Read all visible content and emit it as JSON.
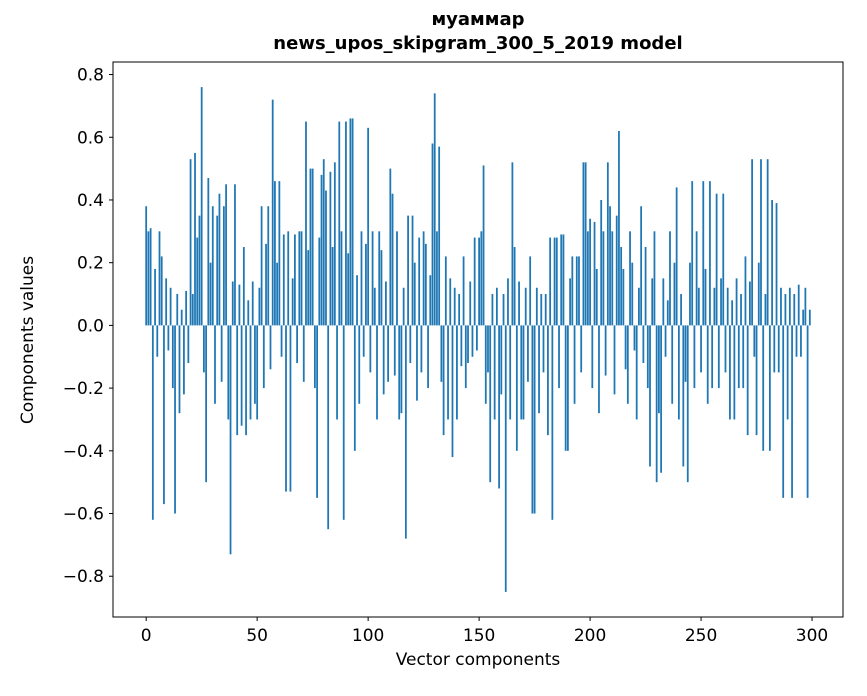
{
  "chart_data": {
    "type": "bar",
    "title": "муаммар",
    "subtitle": "news_upos_skipgram_300_5_2019 model",
    "xlabel": "Vector components",
    "ylabel": "Components values",
    "x_ticks": [
      0,
      50,
      100,
      150,
      200,
      250,
      300
    ],
    "x_tick_labels": [
      "0",
      "50",
      "100",
      "150",
      "200",
      "250",
      "300"
    ],
    "y_ticks": [
      0.8,
      0.6,
      0.4,
      0.2,
      0.0,
      -0.2,
      -0.4,
      -0.6,
      -0.8
    ],
    "y_tick_labels": [
      "0.8",
      "0.6",
      "0.4",
      "0.2",
      "0.0",
      "−0.2",
      "−0.4",
      "−0.6",
      "−0.8"
    ],
    "xlim": [
      -14.95,
      313.95
    ],
    "ylim": [
      -0.93,
      0.84
    ],
    "bar_color": "#1f77b4",
    "axis_color": "#000000",
    "n_components": 300,
    "legend": "none",
    "grid": false,
    "values": [
      0.38,
      0.3,
      0.31,
      -0.62,
      0.18,
      -0.1,
      0.3,
      0.22,
      -0.57,
      0.15,
      -0.08,
      0.12,
      -0.2,
      -0.6,
      0.1,
      -0.28,
      0.05,
      -0.22,
      0.11,
      -0.12,
      0.53,
      0.1,
      0.55,
      0.28,
      0.35,
      0.76,
      -0.15,
      -0.5,
      0.47,
      0.2,
      0.38,
      -0.25,
      0.35,
      0.42,
      -0.18,
      0.38,
      0.45,
      -0.3,
      -0.73,
      0.14,
      0.45,
      -0.35,
      0.13,
      -0.32,
      0.25,
      -0.35,
      0.08,
      -0.3,
      0.14,
      -0.25,
      -0.3,
      0.12,
      0.38,
      -0.2,
      0.26,
      0.38,
      -0.14,
      0.72,
      0.46,
      0.2,
      0.46,
      -0.1,
      0.29,
      -0.53,
      0.3,
      -0.53,
      0.15,
      0.29,
      -0.12,
      0.3,
      0.3,
      -0.18,
      0.65,
      0.24,
      0.5,
      0.5,
      -0.2,
      -0.55,
      0.28,
      0.48,
      0.53,
      0.43,
      -0.65,
      0.49,
      0.25,
      0.52,
      -0.3,
      0.65,
      0.3,
      -0.62,
      0.65,
      0.23,
      0.66,
      0.66,
      -0.4,
      0.16,
      -0.25,
      0.3,
      -0.1,
      0.26,
      0.63,
      -0.15,
      0.3,
      0.12,
      -0.3,
      0.3,
      0.24,
      -0.22,
      0.14,
      -0.18,
      0.5,
      0.42,
      -0.16,
      0.3,
      -0.3,
      -0.28,
      0.12,
      -0.68,
      0.35,
      -0.12,
      0.35,
      0.2,
      -0.24,
      0.28,
      -0.15,
      0.3,
      0.26,
      -0.2,
      0.16,
      0.58,
      0.74,
      0.3,
      0.57,
      -0.18,
      -0.35,
      0.22,
      -0.3,
      0.15,
      -0.42,
      0.12,
      -0.3,
      0.1,
      -0.13,
      0.22,
      -0.2,
      -0.12,
      0.14,
      -0.1,
      0.28,
      -0.08,
      0.28,
      0.3,
      0.51,
      -0.25,
      -0.15,
      -0.5,
      0.1,
      -0.3,
      0.12,
      -0.52,
      -0.22,
      0.1,
      -0.85,
      0.15,
      -0.3,
      0.52,
      0.25,
      -0.4,
      0.14,
      -0.3,
      -0.3,
      0.12,
      -0.18,
      0.22,
      -0.6,
      -0.6,
      0.12,
      -0.28,
      0.1,
      -0.15,
      0.1,
      -0.35,
      0.28,
      -0.62,
      0.28,
      0.28,
      -0.2,
      0.29,
      0.29,
      -0.4,
      -0.4,
      0.15,
      0.22,
      -0.25,
      0.22,
      0.22,
      -0.15,
      0.52,
      0.52,
      0.3,
      0.34,
      -0.2,
      0.33,
      0.18,
      -0.28,
      0.4,
      0.3,
      -0.16,
      0.52,
      0.38,
      0.3,
      -0.22,
      0.35,
      0.62,
      0.25,
      0.18,
      -0.14,
      -0.25,
      0.3,
      0.2,
      -0.08,
      -0.3,
      0.12,
      0.38,
      -0.12,
      0.25,
      -0.2,
      -0.45,
      0.15,
      0.3,
      -0.5,
      -0.28,
      -0.47,
      0.15,
      -0.1,
      0.08,
      0.3,
      -0.25,
      0.2,
      0.44,
      -0.3,
      0.1,
      -0.45,
      -0.18,
      -0.5,
      0.2,
      0.46,
      -0.2,
      0.3,
      0.12,
      -0.15,
      0.46,
      0.18,
      -0.25,
      0.46,
      -0.2,
      0.12,
      0.42,
      -0.2,
      0.15,
      0.42,
      -0.15,
      0.12,
      -0.3,
      0.08,
      -0.3,
      0.15,
      -0.2,
      0.1,
      -0.2,
      0.22,
      -0.35,
      0.14,
      0.53,
      -0.1,
      -0.35,
      0.2,
      0.53,
      -0.4,
      0.1,
      0.53,
      -0.4,
      0.4,
      -0.15,
      0.39,
      -0.15,
      0.12,
      -0.55,
      0.1,
      -0.3,
      0.12,
      -0.55,
      0.1,
      -0.1,
      0.13,
      -0.1,
      0.05,
      0.12,
      -0.55,
      0.05
    ]
  }
}
